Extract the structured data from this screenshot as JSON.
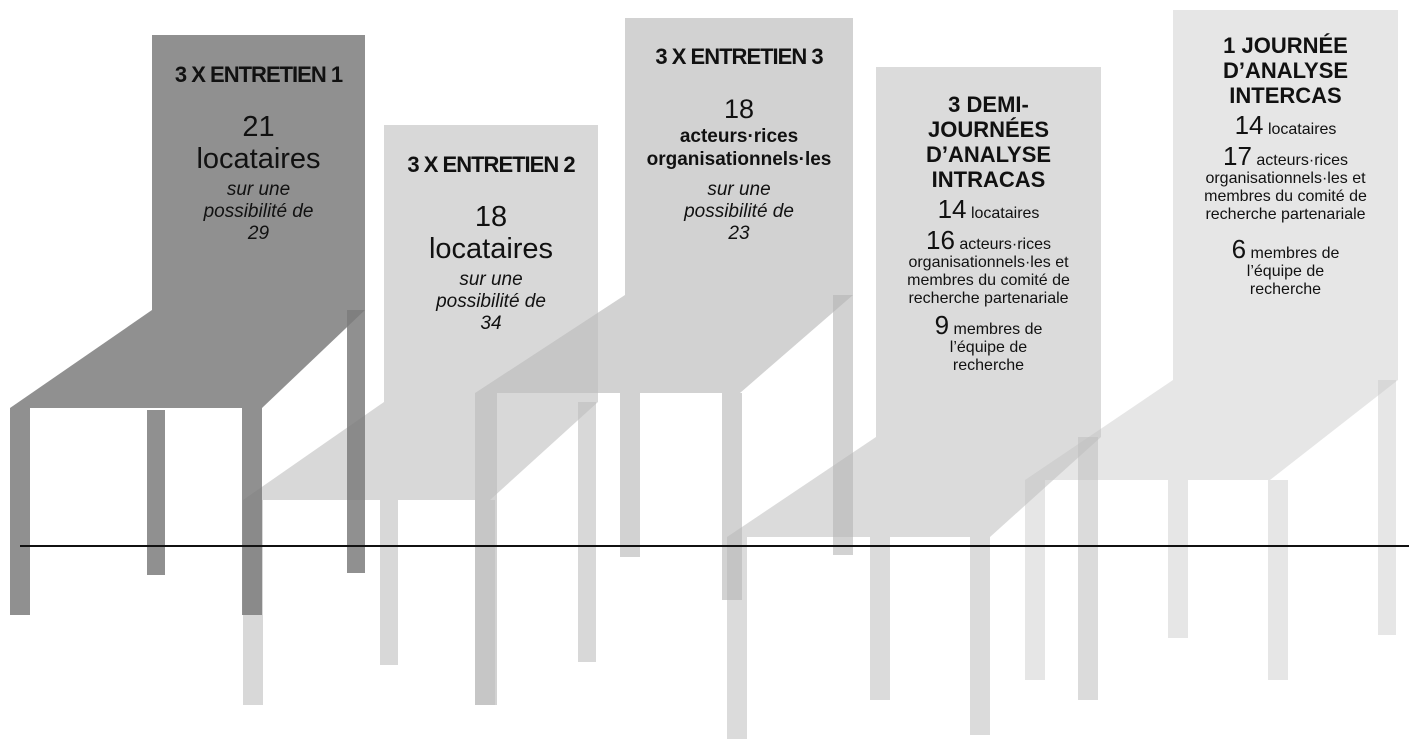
{
  "chairs": [
    {
      "title": "3 X ENTRETIEN 1",
      "count": 21,
      "unit": "locataires",
      "note": "sur une possibilité de 29"
    },
    {
      "title": "3 X ENTRETIEN 2",
      "count": 18,
      "unit": "locataires",
      "note": "sur une possibilité de 34"
    },
    {
      "title": "3 X ENTRETIEN 3",
      "count": 18,
      "unit": "acteurs·rices organisationnels·les",
      "note": "sur une possibilité de 23"
    },
    {
      "title": "3 DEMI-JOURNÉES D’ANALYSE INTRACAS",
      "groups": [
        {
          "count": 14,
          "label": "locataires"
        },
        {
          "count": 16,
          "label": "acteurs·rices organisationnels·les et membres du comité de recherche partenariale"
        },
        {
          "count": 9,
          "label": "membres de l’équipe de recherche"
        }
      ]
    },
    {
      "title": "1 JOURNÉE D’ANALYSE INTERCAS",
      "groups": [
        {
          "count": 14,
          "label": "locataires"
        },
        {
          "count": 17,
          "label": "acteurs·rices organisationnels·les et membres du comité de recherche partenariale"
        },
        {
          "count": 6,
          "label": "membres de l’équipe de recherche"
        }
      ]
    }
  ]
}
